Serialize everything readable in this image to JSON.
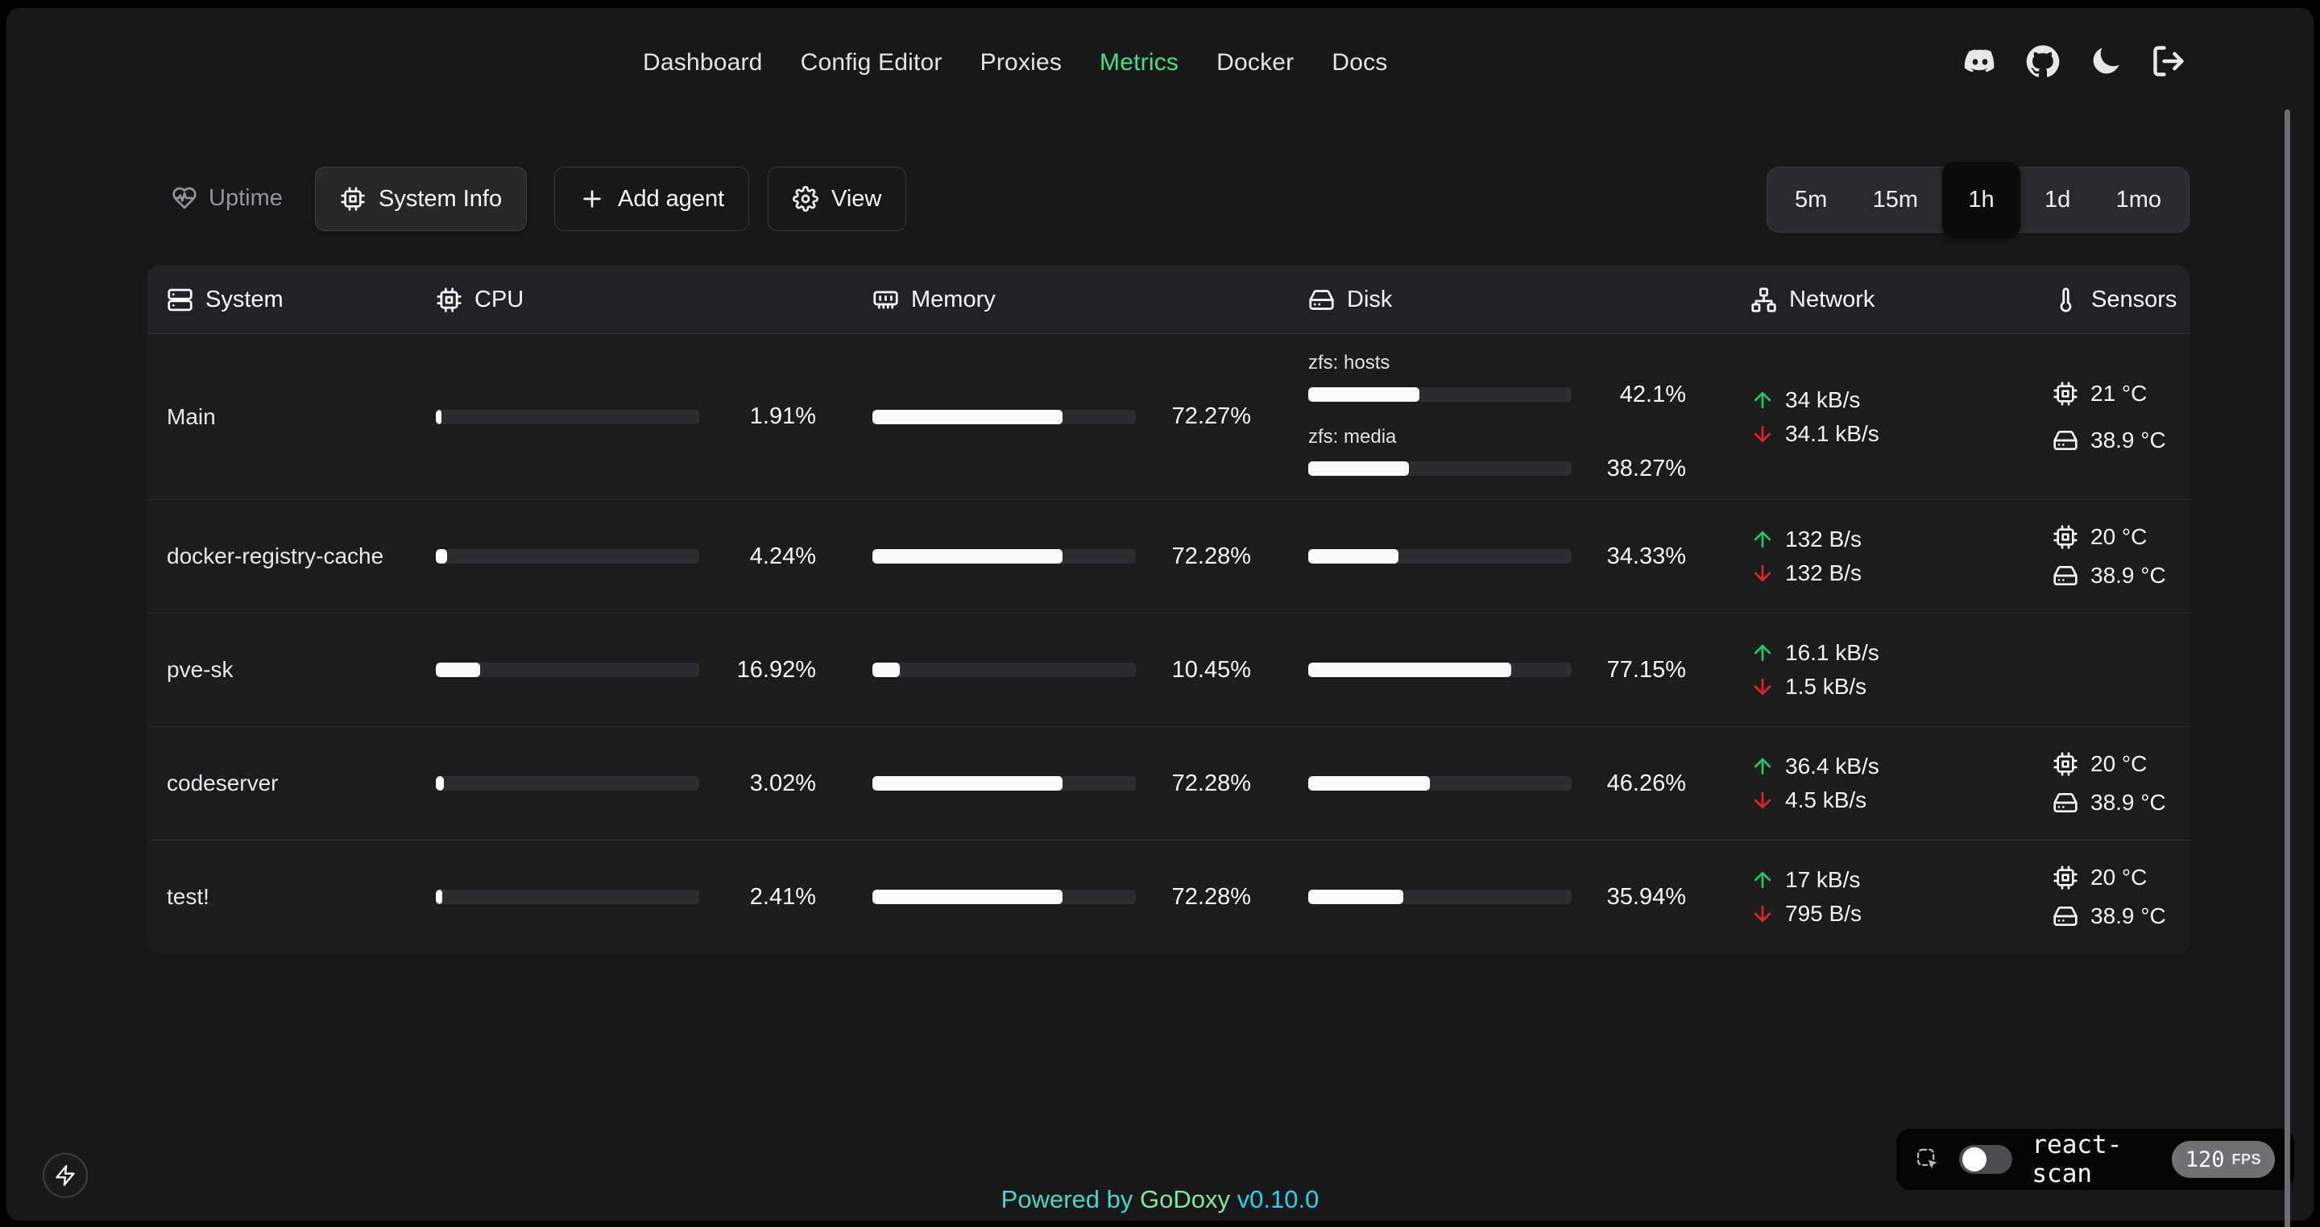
{
  "nav": {
    "items": [
      "Dashboard",
      "Config Editor",
      "Proxies",
      "Metrics",
      "Docker",
      "Docs"
    ],
    "active": "Metrics"
  },
  "toolbar": {
    "uptime_label": "Uptime",
    "system_info_label": "System Info",
    "add_agent_label": "Add agent",
    "view_label": "View"
  },
  "time_range": {
    "options": [
      "5m",
      "15m",
      "1h",
      "1d",
      "1mo"
    ],
    "selected": "1h"
  },
  "table": {
    "columns": [
      {
        "label": "System",
        "icon": "server-icon"
      },
      {
        "label": "CPU",
        "icon": "cpu-icon"
      },
      {
        "label": "Memory",
        "icon": "memory-icon"
      },
      {
        "label": "Disk",
        "icon": "hard-drive-icon"
      },
      {
        "label": "Network",
        "icon": "network-icon"
      },
      {
        "label": "Sensors",
        "icon": "thermometer-icon"
      }
    ],
    "rows": [
      {
        "name": "Main",
        "cpu": {
          "label": "1.91%",
          "value": 1.91
        },
        "memory": {
          "label": "72.27%",
          "value": 72.27
        },
        "disks": [
          {
            "label": "zfs: hosts",
            "pct": "42.1%",
            "value": 42.1
          },
          {
            "label": "zfs: media",
            "pct": "38.27%",
            "value": 38.27
          }
        ],
        "network": {
          "up": "34 kB/s",
          "down": "34.1 kB/s"
        },
        "sensors": {
          "cpu": "21 °C",
          "disk": "38.9 °C"
        }
      },
      {
        "name": "docker-registry-cache",
        "cpu": {
          "label": "4.24%",
          "value": 4.24
        },
        "memory": {
          "label": "72.28%",
          "value": 72.28
        },
        "disks": [
          {
            "pct": "34.33%",
            "value": 34.33
          }
        ],
        "network": {
          "up": "132 B/s",
          "down": "132 B/s"
        },
        "sensors": {
          "cpu": "20 °C",
          "disk": "38.9 °C"
        }
      },
      {
        "name": "pve-sk",
        "cpu": {
          "label": "16.92%",
          "value": 16.92
        },
        "memory": {
          "label": "10.45%",
          "value": 10.45
        },
        "disks": [
          {
            "pct": "77.15%",
            "value": 77.15
          }
        ],
        "network": {
          "up": "16.1 kB/s",
          "down": "1.5 kB/s"
        },
        "sensors": null
      },
      {
        "name": "codeserver",
        "cpu": {
          "label": "3.02%",
          "value": 3.02
        },
        "memory": {
          "label": "72.28%",
          "value": 72.28
        },
        "disks": [
          {
            "pct": "46.26%",
            "value": 46.26
          }
        ],
        "network": {
          "up": "36.4 kB/s",
          "down": "4.5 kB/s"
        },
        "sensors": {
          "cpu": "20 °C",
          "disk": "38.9 °C"
        }
      },
      {
        "name": "test!",
        "cpu": {
          "label": "2.41%",
          "value": 2.41
        },
        "memory": {
          "label": "72.28%",
          "value": 72.28
        },
        "disks": [
          {
            "pct": "35.94%",
            "value": 35.94
          }
        ],
        "network": {
          "up": "17 kB/s",
          "down": "795 B/s"
        },
        "sensors": {
          "cpu": "20 °C",
          "disk": "38.9 °C"
        }
      }
    ]
  },
  "footer": {
    "powered_by": "Powered by",
    "brand": "GoDoxy",
    "version": "v0.10.0"
  },
  "react_scan": {
    "label": "react-scan",
    "fps": "120",
    "fps_unit": "FPS",
    "toggle_on": false
  },
  "colors": {
    "accent_green": "#4ade80",
    "net_up": "#22c55e",
    "net_down": "#dc2626",
    "footer_teal": "#45d6c8",
    "footer_brand": "#7de8a0",
    "footer_version": "#22d3ee"
  }
}
